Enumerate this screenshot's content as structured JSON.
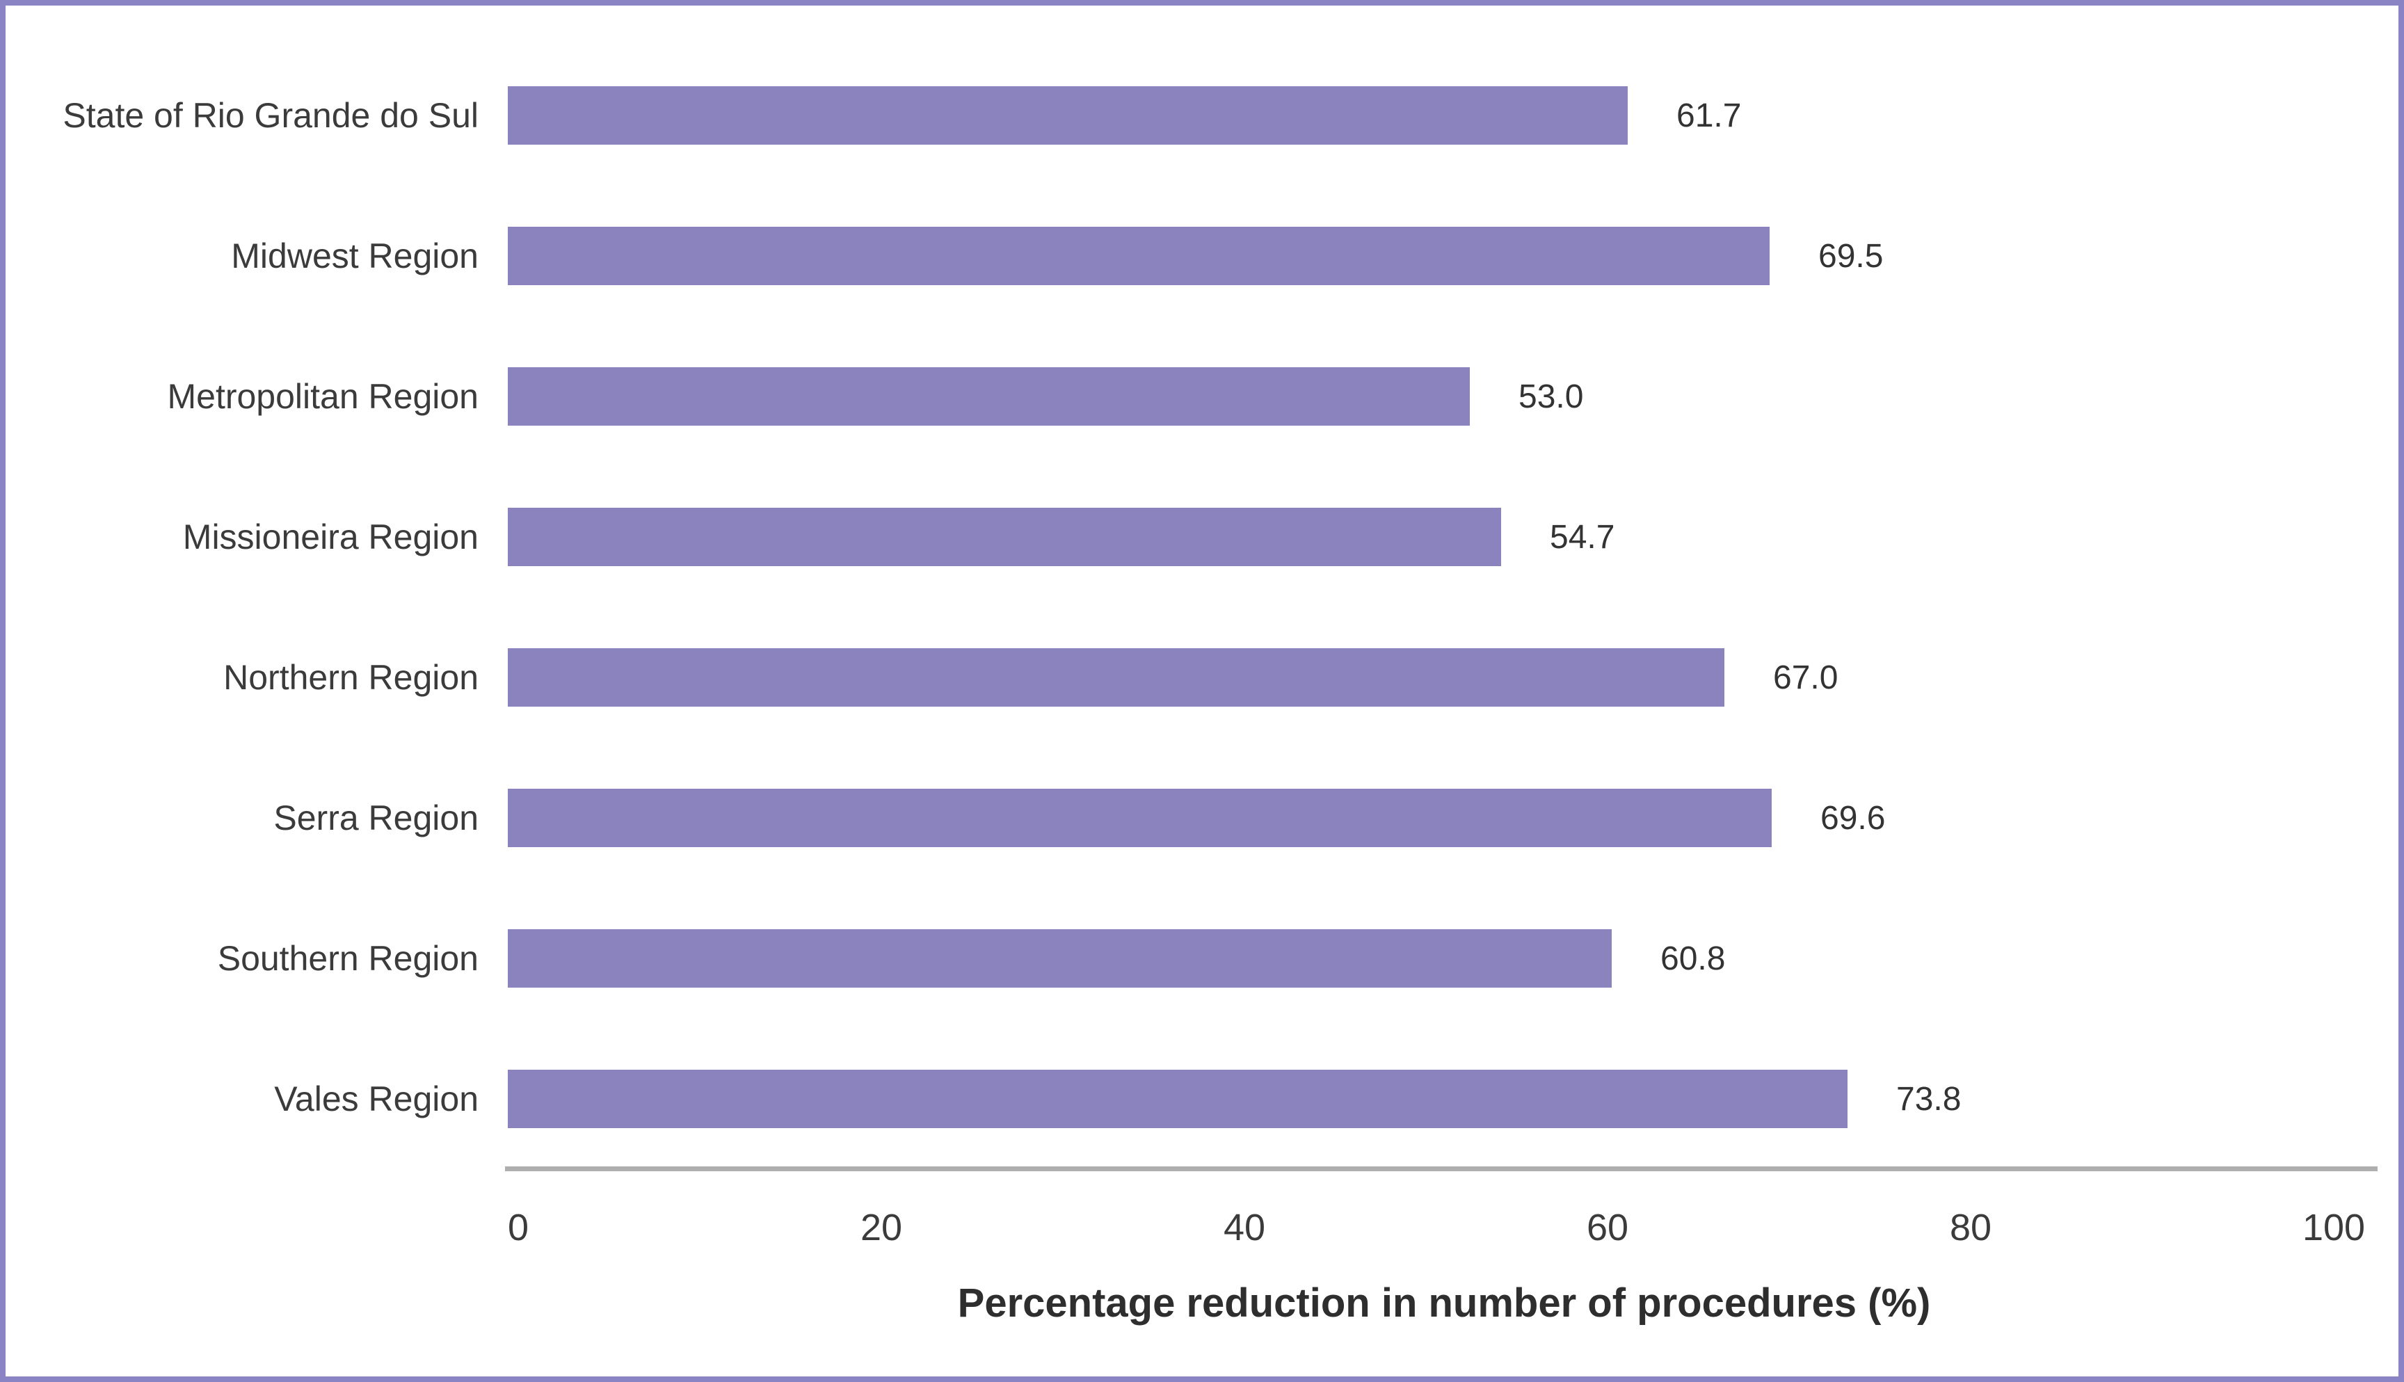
{
  "chart_data": {
    "type": "bar",
    "orientation": "horizontal",
    "categories": [
      "State of Rio Grande do Sul",
      "Midwest Region",
      "Metropolitan Region",
      "Missioneira Region",
      "Northern Region",
      "Serra Region",
      "Southern Region",
      "Vales Region"
    ],
    "values": [
      61.7,
      69.5,
      53.0,
      54.7,
      67.0,
      69.6,
      60.8,
      73.8
    ],
    "value_labels": [
      "61.7",
      "69.5",
      "53.0",
      "54.7",
      "67.0",
      "69.6",
      "60.8",
      "73.8"
    ],
    "title": "",
    "xlabel": "Percentage reduction in number of procedures (%)",
    "ylabel": "",
    "x_ticks": [
      0,
      20,
      40,
      60,
      80,
      100
    ],
    "x_tick_labels": [
      "0",
      "20",
      "40",
      "60",
      "80",
      "100"
    ],
    "xlim": [
      0,
      100
    ],
    "grid": false,
    "legend": null,
    "bar_color": "#8A83BE"
  },
  "colors": {
    "bar": "#8A83BE",
    "frame_border": "#8A84C4",
    "axis_line": "#AFAFAF",
    "category_text": "#3B3B3B",
    "value_text": "#333333",
    "axis_title_text": "#2E2E2E"
  }
}
